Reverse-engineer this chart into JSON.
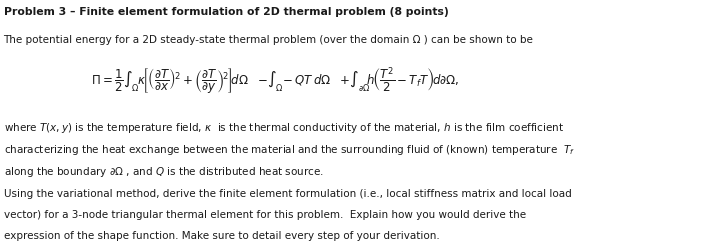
{
  "title": "Problem 3 – Finite element formulation of 2D thermal problem (8 points)",
  "line1": "The potential energy for a 2D steady-state thermal problem (over the domain Ω ) can be shown to be",
  "line2": "where $T(x,y)$ is the temperature field, $\\kappa$  is the thermal conductivity of the material, $h$ is the film coefficient",
  "line3": "characterizing the heat exchange between the material and the surrounding fluid of (known) temperature  $T_f$",
  "line4": "along the boundary $\\partial\\Omega$ , and $Q$ is the distributed heat source.",
  "line5": "Using the variational method, derive the finite element formulation (i.e., local stiffness matrix and local load",
  "line6": "vector) for a 3-node triangular thermal element for this problem.  Explain how you would derive the",
  "line7": "expression of the shape function. Make sure to detail every step of your derivation.",
  "bg_color": "#ffffff",
  "text_color": "#1a1a1a",
  "title_fontsize": 7.8,
  "body_fontsize": 7.5,
  "eq_fontsize": 8.5,
  "figwidth": 7.02,
  "figheight": 2.44,
  "dpi": 100
}
